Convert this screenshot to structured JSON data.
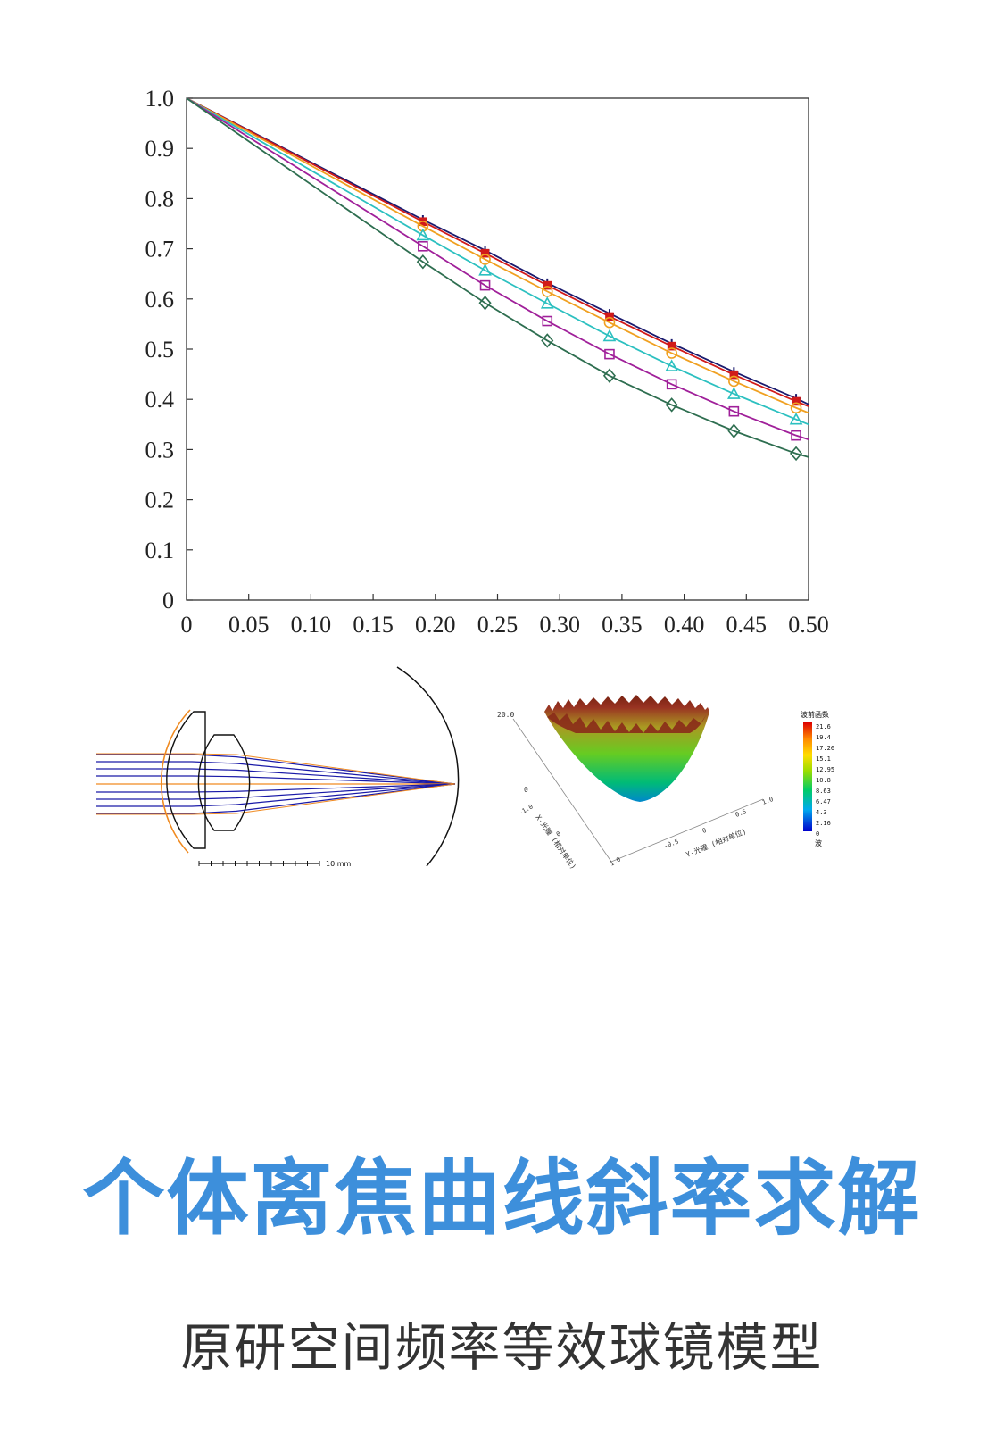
{
  "chart_data": {
    "type": "line",
    "xlim": [
      0,
      0.5
    ],
    "ylim": [
      0,
      1.0
    ],
    "x_ticks": [
      "0",
      "0.05",
      "0.10",
      "0.15",
      "0.20",
      "0.25",
      "0.30",
      "0.35",
      "0.40",
      "0.45",
      "0.50"
    ],
    "y_ticks": [
      "0",
      "0.1",
      "0.2",
      "0.3",
      "0.4",
      "0.5",
      "0.6",
      "0.7",
      "0.8",
      "0.9",
      "1.0"
    ],
    "grid": false,
    "marker_x": [
      0.19,
      0.24,
      0.29,
      0.34,
      0.39,
      0.44,
      0.49
    ],
    "series": [
      {
        "color": "#1a1a6e",
        "marker": "plus",
        "x": [
          0,
          0.19,
          0.24,
          0.29,
          0.34,
          0.39,
          0.44,
          0.49,
          0.5
        ],
        "values": [
          1.0,
          0.758,
          0.697,
          0.632,
          0.571,
          0.511,
          0.455,
          0.402,
          0.39
        ]
      },
      {
        "color": "#d11a1a",
        "marker": "square-filled",
        "x": [
          0,
          0.19,
          0.24,
          0.29,
          0.34,
          0.39,
          0.44,
          0.49,
          0.5
        ],
        "values": [
          1.0,
          0.754,
          0.691,
          0.627,
          0.565,
          0.506,
          0.449,
          0.396,
          0.386
        ]
      },
      {
        "color": "#f0a020",
        "marker": "circle",
        "x": [
          0,
          0.19,
          0.24,
          0.29,
          0.34,
          0.39,
          0.44,
          0.49,
          0.5
        ],
        "values": [
          1.0,
          0.745,
          0.679,
          0.615,
          0.553,
          0.492,
          0.436,
          0.383,
          0.373
        ]
      },
      {
        "color": "#2cc0c0",
        "marker": "triangle",
        "x": [
          0,
          0.19,
          0.24,
          0.29,
          0.34,
          0.39,
          0.44,
          0.49,
          0.5
        ],
        "values": [
          1.0,
          0.727,
          0.657,
          0.591,
          0.526,
          0.466,
          0.411,
          0.36,
          0.35
        ]
      },
      {
        "color": "#a0209a",
        "marker": "square",
        "x": [
          0,
          0.19,
          0.24,
          0.29,
          0.34,
          0.39,
          0.44,
          0.49,
          0.5
        ],
        "values": [
          1.0,
          0.705,
          0.627,
          0.556,
          0.49,
          0.43,
          0.376,
          0.328,
          0.32
        ]
      },
      {
        "color": "#2e6e50",
        "marker": "diamond",
        "x": [
          0,
          0.19,
          0.24,
          0.29,
          0.34,
          0.39,
          0.44,
          0.49,
          0.5
        ],
        "values": [
          1.0,
          0.674,
          0.592,
          0.517,
          0.447,
          0.389,
          0.337,
          0.292,
          0.285
        ]
      }
    ]
  },
  "lens_diagram": {
    "scale_label": "10 mm",
    "colors": {
      "ray": "#1a1aa8",
      "marginal": "#f08a20",
      "outline": "#111111"
    }
  },
  "surface_plot": {
    "z_label": "20.0",
    "x_axis_label": "X-光瞳 (相对单位)",
    "y_axis_label": "Y-光瞳 (相对单位)",
    "x_ticks": [
      "-1.0",
      "0",
      "1.0"
    ],
    "y_ticks": [
      "-0.5",
      "0",
      "0.5",
      "1.0"
    ],
    "origin_label": "0",
    "colorbar_title": "波前函数",
    "colorbar_values": [
      "21.6",
      "19.4",
      "17.26",
      "15.1",
      "12.95",
      "10.8",
      "8.63",
      "6.47",
      "4.3",
      "2.16",
      "0"
    ],
    "colorbar_unit": "波",
    "colors": [
      "#0000cc",
      "#00aaee",
      "#00cc66",
      "#99dd00",
      "#ffdd00",
      "#ff8800",
      "#dd0000"
    ]
  },
  "title": "个体离焦曲线斜率求解",
  "subtitle": "原研空间频率等效球镜模型"
}
